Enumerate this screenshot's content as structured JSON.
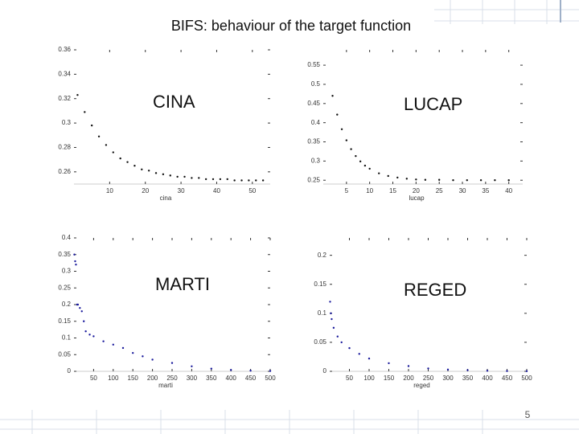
{
  "title": "BIFS: behaviour of the target function",
  "page_number": "5",
  "chart_data": [
    {
      "type": "scatter",
      "annotation": "CINA",
      "x_label": "cina",
      "color": "#111111",
      "x": [
        1,
        3,
        5,
        7,
        9,
        11,
        13,
        15,
        17,
        19,
        21,
        23,
        25,
        27,
        29,
        31,
        33,
        35,
        37,
        39,
        41,
        43,
        45,
        47,
        49,
        51,
        53
      ],
      "values": [
        0.323,
        0.309,
        0.298,
        0.289,
        0.282,
        0.276,
        0.271,
        0.268,
        0.265,
        0.262,
        0.261,
        0.259,
        0.258,
        0.257,
        0.256,
        0.256,
        0.255,
        0.255,
        0.254,
        0.254,
        0.254,
        0.254,
        0.253,
        0.253,
        0.253,
        0.253,
        0.253
      ],
      "xlim": [
        0,
        55
      ],
      "ylim": [
        0.25,
        0.36
      ],
      "xticks": [
        10,
        20,
        30,
        40,
        50
      ],
      "yticks": [
        0.26,
        0.28,
        0.3,
        0.32,
        0.34,
        0.36
      ]
    },
    {
      "type": "scatter",
      "annotation": "LUCAP",
      "x_label": "lucap",
      "color": "#111111",
      "x": [
        2,
        3,
        4,
        5,
        6,
        7,
        8,
        9,
        10,
        12,
        14,
        16,
        18,
        20,
        22,
        25,
        28,
        31,
        34,
        37,
        40
      ],
      "values": [
        0.47,
        0.421,
        0.383,
        0.354,
        0.331,
        0.313,
        0.299,
        0.288,
        0.28,
        0.268,
        0.261,
        0.257,
        0.254,
        0.252,
        0.251,
        0.251,
        0.25,
        0.25,
        0.25,
        0.25,
        0.25
      ],
      "xlim": [
        0,
        43
      ],
      "ylim": [
        0.24,
        0.59
      ],
      "xticks": [
        5,
        10,
        15,
        20,
        25,
        30,
        35,
        40
      ],
      "yticks": [
        0.25,
        0.3,
        0.35,
        0.4,
        0.45,
        0.5,
        0.55
      ]
    },
    {
      "type": "scatter",
      "annotation": "MARTI",
      "x_label": "marti",
      "color": "#1a1a9c",
      "x": [
        1,
        3,
        5,
        8,
        10,
        15,
        20,
        25,
        30,
        40,
        50,
        75,
        100,
        125,
        150,
        175,
        200,
        250,
        300,
        350,
        400,
        450,
        500
      ],
      "values": [
        0.35,
        0.33,
        0.32,
        0.2,
        0.2,
        0.19,
        0.18,
        0.15,
        0.12,
        0.11,
        0.105,
        0.09,
        0.08,
        0.07,
        0.055,
        0.045,
        0.035,
        0.025,
        0.015,
        0.008,
        0.004,
        0.002,
        0.001
      ],
      "xlim": [
        0,
        500
      ],
      "ylim": [
        0,
        0.4
      ],
      "xticks": [
        50,
        100,
        150,
        200,
        250,
        300,
        350,
        400,
        450,
        500
      ],
      "yticks": [
        0,
        0.05,
        0.1,
        0.15,
        0.2,
        0.25,
        0.3,
        0.35,
        0.4
      ]
    },
    {
      "type": "scatter",
      "annotation": "REGED",
      "x_label": "reged",
      "color": "#1a1a9c",
      "x": [
        1,
        3,
        5,
        10,
        20,
        30,
        50,
        75,
        100,
        150,
        200,
        250,
        300,
        350,
        400,
        450,
        500
      ],
      "values": [
        0.12,
        0.1,
        0.09,
        0.075,
        0.06,
        0.05,
        0.04,
        0.03,
        0.022,
        0.014,
        0.009,
        0.005,
        0.003,
        0.002,
        0.001,
        0.0005,
        0.0003
      ],
      "xlim": [
        0,
        500
      ],
      "ylim": [
        0,
        0.23
      ],
      "xticks": [
        50,
        100,
        150,
        200,
        250,
        300,
        350,
        400,
        450,
        500
      ],
      "yticks": [
        0,
        0.05,
        0.1,
        0.15,
        0.2
      ]
    }
  ]
}
